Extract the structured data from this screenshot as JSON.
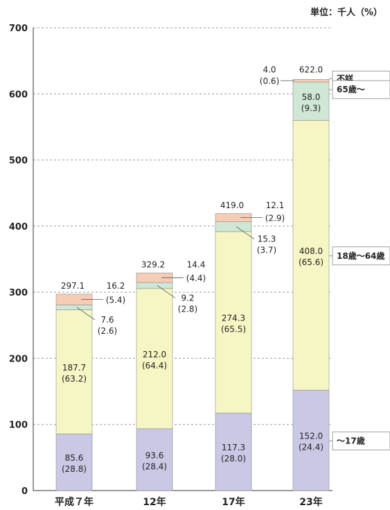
{
  "chart_data": {
    "type": "bar",
    "stacked": true,
    "unit_label": "単位：千人（%）",
    "categories": [
      "平成７年",
      "12年",
      "17年",
      "23年"
    ],
    "ylim": [
      0,
      700
    ],
    "yticks": [
      0,
      100,
      200,
      300,
      400,
      500,
      600,
      700
    ],
    "grid": "dashed-horizontal",
    "series": [
      {
        "name": "～17歳",
        "color": "#c9c9e6",
        "values": [
          85.6,
          93.6,
          117.3,
          152.0
        ],
        "percents": [
          "(28.8)",
          "(28.4)",
          "(28.0)",
          "(24.4)"
        ]
      },
      {
        "name": "18歳～64歳",
        "color": "#f6f6c4",
        "values": [
          187.7,
          212.0,
          274.3,
          408.0
        ],
        "percents": [
          "(63.2)",
          "(64.4)",
          "(65.5)",
          "(65.6)"
        ]
      },
      {
        "name": "65歳～",
        "color": "#cfe7d4",
        "values": [
          7.6,
          9.2,
          15.3,
          58.0
        ],
        "percents": [
          "(2.6)",
          "(2.8)",
          "(3.7)",
          "(9.3)"
        ]
      },
      {
        "name": "不詳",
        "color": "#f6cdb4",
        "values": [
          16.2,
          14.4,
          12.1,
          4.0
        ],
        "percents": [
          "(5.4)",
          "(4.4)",
          "(2.9)",
          "(0.6)"
        ]
      }
    ],
    "totals": [
      297.1,
      329.2,
      419.0,
      622.0
    ],
    "value_labels": {
      "seg0": [
        "85.6",
        "93.6",
        "117.3",
        "152.0"
      ],
      "seg1": [
        "187.7",
        "212.0",
        "274.3",
        "408.0"
      ],
      "seg2": [
        "7.6",
        "9.2",
        "15.3",
        "58.0"
      ],
      "seg3": [
        "16.2",
        "14.4",
        "12.1",
        "4.0"
      ],
      "totals": [
        "297.1",
        "329.2",
        "419.0",
        "622.0"
      ]
    },
    "legend_labels": [
      "不詳",
      "65歳～",
      "18歳～64歳",
      "～17歳"
    ]
  }
}
